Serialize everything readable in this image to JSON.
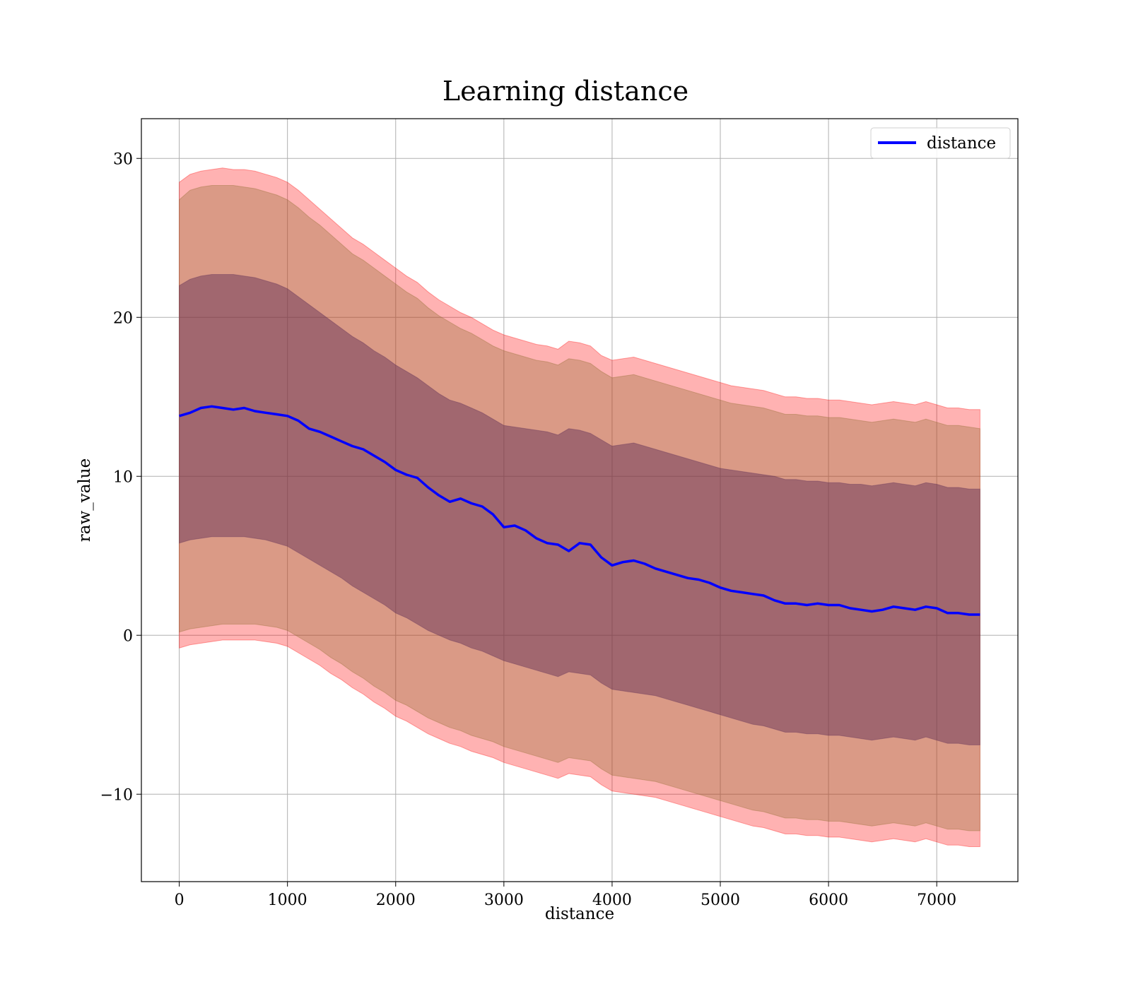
{
  "chart_data": {
    "type": "line",
    "title": "Learning distance",
    "xlabel": "distance",
    "ylabel": "raw_value",
    "xlim": [
      -350,
      7750
    ],
    "ylim": [
      -15.5,
      32.5
    ],
    "xticks": [
      0,
      1000,
      2000,
      3000,
      4000,
      5000,
      6000,
      7000
    ],
    "yticks": [
      -10,
      0,
      10,
      20,
      30
    ],
    "ytick_labels": [
      "−10",
      "0",
      "10",
      "20",
      "30"
    ],
    "grid": true,
    "legend": {
      "position": "top-right",
      "entries": [
        {
          "label": "distance",
          "color": "#0000ff"
        }
      ]
    },
    "series": [
      {
        "name": "distance",
        "color": "#0000ff",
        "x": [
          0,
          100,
          200,
          300,
          400,
          500,
          600,
          700,
          800,
          900,
          1000,
          1100,
          1200,
          1300,
          1400,
          1500,
          1600,
          1700,
          1800,
          1900,
          2000,
          2100,
          2200,
          2300,
          2400,
          2500,
          2600,
          2700,
          2800,
          2900,
          3000,
          3100,
          3200,
          3300,
          3400,
          3500,
          3600,
          3700,
          3800,
          3900,
          4000,
          4100,
          4200,
          4300,
          4400,
          4500,
          4600,
          4700,
          4800,
          4900,
          5000,
          5100,
          5200,
          5300,
          5400,
          5500,
          5600,
          5700,
          5800,
          5900,
          6000,
          6100,
          6200,
          6300,
          6400,
          6500,
          6600,
          6700,
          6800,
          6900,
          7000,
          7100,
          7200,
          7300,
          7400
        ],
        "values": [
          13.8,
          14.0,
          14.3,
          14.4,
          14.3,
          14.2,
          14.3,
          14.1,
          14.0,
          13.9,
          13.8,
          13.5,
          13.0,
          12.8,
          12.5,
          12.2,
          11.9,
          11.7,
          11.3,
          10.9,
          10.4,
          10.1,
          9.9,
          9.3,
          8.8,
          8.4,
          8.6,
          8.3,
          8.1,
          7.6,
          6.8,
          6.9,
          6.6,
          6.1,
          5.8,
          5.7,
          5.3,
          5.8,
          5.7,
          4.9,
          4.4,
          4.6,
          4.7,
          4.5,
          4.2,
          4.0,
          3.8,
          3.6,
          3.5,
          3.3,
          3.0,
          2.8,
          2.7,
          2.6,
          2.5,
          2.2,
          2.0,
          2.0,
          1.9,
          2.0,
          1.9,
          1.9,
          1.7,
          1.6,
          1.5,
          1.6,
          1.8,
          1.7,
          1.6,
          1.8,
          1.7,
          1.4,
          1.4,
          1.3,
          1.3
        ]
      }
    ],
    "bands": [
      {
        "name": "outer",
        "color": "#ff0000",
        "opacity": 0.3,
        "upper": [
          28.5,
          29.0,
          29.2,
          29.3,
          29.4,
          29.3,
          29.3,
          29.2,
          29.0,
          28.8,
          28.5,
          28.0,
          27.4,
          26.8,
          26.2,
          25.6,
          25.0,
          24.6,
          24.1,
          23.6,
          23.1,
          22.6,
          22.2,
          21.6,
          21.1,
          20.7,
          20.3,
          20.0,
          19.6,
          19.2,
          18.9,
          18.7,
          18.5,
          18.3,
          18.2,
          18.0,
          18.5,
          18.4,
          18.2,
          17.6,
          17.3,
          17.4,
          17.5,
          17.3,
          17.1,
          16.9,
          16.7,
          16.5,
          16.3,
          16.1,
          15.9,
          15.7,
          15.6,
          15.5,
          15.4,
          15.2,
          15.0,
          15.0,
          14.9,
          14.9,
          14.8,
          14.8,
          14.7,
          14.6,
          14.5,
          14.6,
          14.7,
          14.6,
          14.5,
          14.7,
          14.5,
          14.3,
          14.3,
          14.2,
          14.2
        ],
        "lower": [
          -0.8,
          -0.6,
          -0.5,
          -0.4,
          -0.3,
          -0.3,
          -0.3,
          -0.3,
          -0.4,
          -0.5,
          -0.7,
          -1.1,
          -1.5,
          -1.9,
          -2.4,
          -2.8,
          -3.3,
          -3.7,
          -4.2,
          -4.6,
          -5.1,
          -5.4,
          -5.8,
          -6.2,
          -6.5,
          -6.8,
          -7.0,
          -7.3,
          -7.5,
          -7.7,
          -8.0,
          -8.2,
          -8.4,
          -8.6,
          -8.8,
          -9.0,
          -8.7,
          -8.8,
          -8.9,
          -9.4,
          -9.8,
          -9.9,
          -10.0,
          -10.1,
          -10.2,
          -10.4,
          -10.6,
          -10.8,
          -11.0,
          -11.2,
          -11.4,
          -11.6,
          -11.8,
          -12.0,
          -12.1,
          -12.3,
          -12.5,
          -12.5,
          -12.6,
          -12.6,
          -12.7,
          -12.7,
          -12.8,
          -12.9,
          -13.0,
          -12.9,
          -12.8,
          -12.9,
          -13.0,
          -12.8,
          -13.0,
          -13.2,
          -13.2,
          -13.3,
          -13.3
        ]
      },
      {
        "name": "middle",
        "color": "#8b6a2a",
        "opacity": 0.32,
        "upper": [
          27.4,
          28.0,
          28.2,
          28.3,
          28.3,
          28.3,
          28.2,
          28.1,
          27.9,
          27.7,
          27.4,
          26.9,
          26.3,
          25.8,
          25.2,
          24.6,
          24.0,
          23.6,
          23.1,
          22.6,
          22.1,
          21.6,
          21.2,
          20.6,
          20.1,
          19.7,
          19.3,
          19.0,
          18.6,
          18.2,
          17.9,
          17.7,
          17.5,
          17.3,
          17.2,
          17.0,
          17.4,
          17.3,
          17.1,
          16.6,
          16.2,
          16.3,
          16.4,
          16.2,
          16.0,
          15.8,
          15.6,
          15.4,
          15.2,
          15.0,
          14.8,
          14.6,
          14.5,
          14.4,
          14.3,
          14.1,
          13.9,
          13.9,
          13.8,
          13.8,
          13.7,
          13.7,
          13.6,
          13.5,
          13.4,
          13.5,
          13.6,
          13.5,
          13.4,
          13.6,
          13.4,
          13.2,
          13.2,
          13.1,
          13.0
        ],
        "lower": [
          0.2,
          0.4,
          0.5,
          0.6,
          0.7,
          0.7,
          0.7,
          0.7,
          0.6,
          0.5,
          0.3,
          -0.1,
          -0.5,
          -0.9,
          -1.4,
          -1.8,
          -2.3,
          -2.7,
          -3.2,
          -3.6,
          -4.1,
          -4.4,
          -4.8,
          -5.2,
          -5.5,
          -5.8,
          -6.0,
          -6.3,
          -6.5,
          -6.7,
          -7.0,
          -7.2,
          -7.4,
          -7.6,
          -7.8,
          -8.0,
          -7.7,
          -7.8,
          -7.9,
          -8.4,
          -8.8,
          -8.9,
          -9.0,
          -9.1,
          -9.2,
          -9.4,
          -9.6,
          -9.8,
          -10.0,
          -10.2,
          -10.4,
          -10.6,
          -10.8,
          -11.0,
          -11.1,
          -11.3,
          -11.5,
          -11.5,
          -11.6,
          -11.6,
          -11.7,
          -11.7,
          -11.8,
          -11.9,
          -12.0,
          -11.9,
          -11.8,
          -11.9,
          -12.0,
          -11.8,
          -12.0,
          -12.2,
          -12.2,
          -12.3,
          -12.3
        ]
      },
      {
        "name": "inner",
        "color": "#5a2a55",
        "opacity": 0.45,
        "upper": [
          22.0,
          22.4,
          22.6,
          22.7,
          22.7,
          22.7,
          22.6,
          22.5,
          22.3,
          22.1,
          21.8,
          21.3,
          20.8,
          20.3,
          19.8,
          19.3,
          18.8,
          18.4,
          17.9,
          17.5,
          17.0,
          16.6,
          16.2,
          15.7,
          15.2,
          14.8,
          14.6,
          14.3,
          14.0,
          13.6,
          13.2,
          13.1,
          13.0,
          12.9,
          12.8,
          12.6,
          13.0,
          12.9,
          12.7,
          12.3,
          11.9,
          12.0,
          12.1,
          11.9,
          11.7,
          11.5,
          11.3,
          11.1,
          10.9,
          10.7,
          10.5,
          10.4,
          10.3,
          10.2,
          10.1,
          10.0,
          9.8,
          9.8,
          9.7,
          9.7,
          9.6,
          9.6,
          9.5,
          9.5,
          9.4,
          9.5,
          9.6,
          9.5,
          9.4,
          9.6,
          9.5,
          9.3,
          9.3,
          9.2,
          9.2
        ],
        "lower": [
          5.8,
          6.0,
          6.1,
          6.2,
          6.2,
          6.2,
          6.2,
          6.1,
          6.0,
          5.8,
          5.6,
          5.2,
          4.8,
          4.4,
          4.0,
          3.6,
          3.1,
          2.7,
          2.3,
          1.9,
          1.4,
          1.1,
          0.7,
          0.3,
          0.0,
          -0.3,
          -0.5,
          -0.8,
          -1.0,
          -1.3,
          -1.6,
          -1.8,
          -2.0,
          -2.2,
          -2.4,
          -2.6,
          -2.3,
          -2.4,
          -2.5,
          -3.0,
          -3.4,
          -3.5,
          -3.6,
          -3.7,
          -3.8,
          -4.0,
          -4.2,
          -4.4,
          -4.6,
          -4.8,
          -5.0,
          -5.2,
          -5.4,
          -5.6,
          -5.7,
          -5.9,
          -6.1,
          -6.1,
          -6.2,
          -6.2,
          -6.3,
          -6.3,
          -6.4,
          -6.5,
          -6.6,
          -6.5,
          -6.4,
          -6.5,
          -6.6,
          -6.4,
          -6.6,
          -6.8,
          -6.8,
          -6.9,
          -6.9
        ]
      }
    ]
  }
}
